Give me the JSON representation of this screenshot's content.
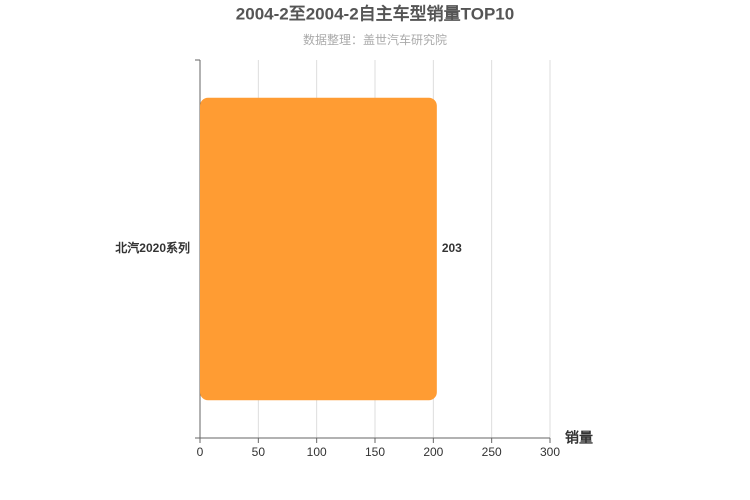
{
  "chart_data": {
    "type": "bar",
    "orientation": "horizontal",
    "title": "2004-2至2004-2自主车型销量TOP10",
    "subtitle": "数据整理：盖世汽车研究院",
    "x_label": "销量",
    "categories": [
      "北汽2020系列"
    ],
    "values": [
      203
    ],
    "color": "#ff9c33",
    "label_color": "#e8a040",
    "xlim": [
      0,
      300
    ],
    "xticks": [
      0,
      50,
      100,
      150,
      200,
      250,
      300
    ],
    "grid": true
  }
}
